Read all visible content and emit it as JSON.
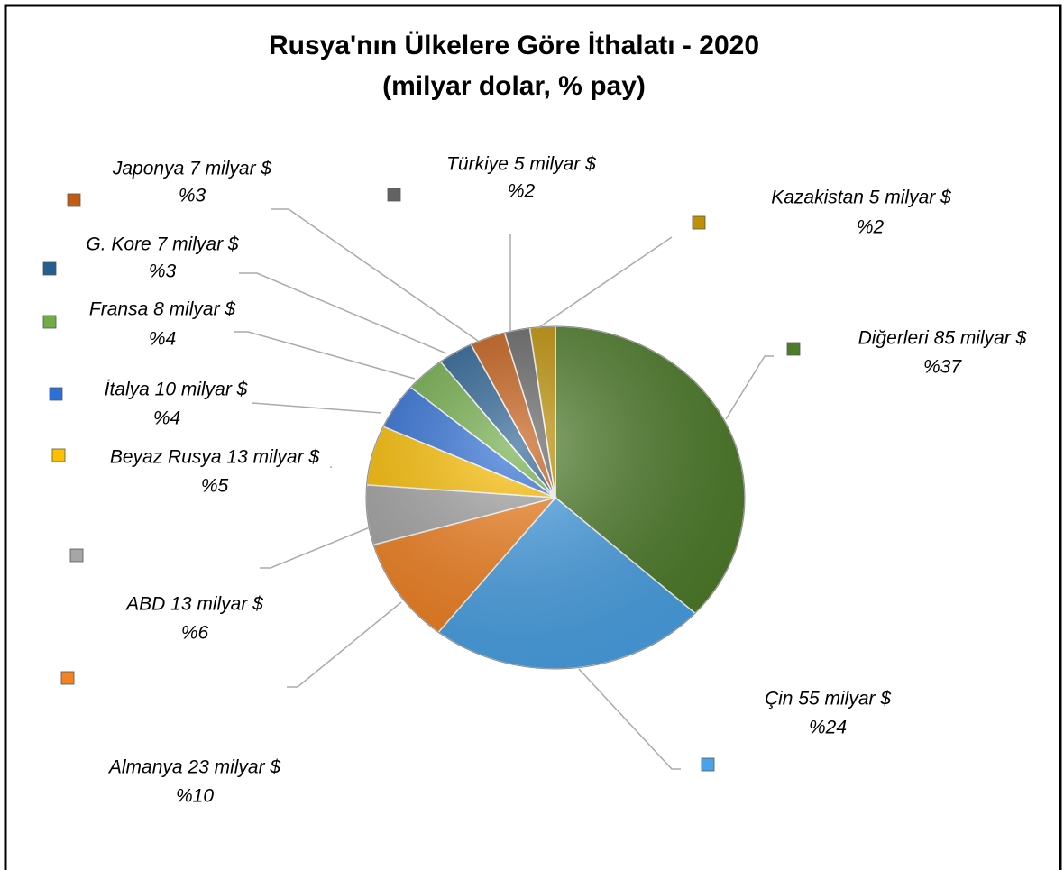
{
  "chart_data": {
    "type": "pie",
    "title": "Rusya'nın Ülkelere Göre İthalatı - 2020",
    "subtitle": "(milyar dolar, % pay)",
    "values": [
      85,
      55,
      23,
      13,
      13,
      10,
      8,
      7,
      7,
      5,
      5
    ],
    "value_labels": [
      "Diğerleri 85 milyar $",
      "Çin 55 milyar $",
      "Almanya 23 milyar $",
      "ABD 13 milyar $",
      "Beyaz Rusya 13 milyar $",
      "İtalya 10 milyar $",
      "Fransa 8 milyar $",
      "G. Kore 7 milyar $",
      "Japonya 7 milyar $",
      "Türkiye 5 milyar $",
      "Kazakistan 5 milyar $"
    ],
    "shares": [
      37,
      24,
      10,
      6,
      5,
      4,
      4,
      3,
      3,
      2,
      2
    ],
    "share_labels": [
      "%37",
      "%24",
      "%10",
      "%6",
      "%5",
      "%4",
      "%4",
      "%3",
      "%3",
      "%2",
      "%2"
    ],
    "colors": [
      "#4e7d2a",
      "#4aa3e8",
      "#f58220",
      "#a6a6a6",
      "#ffc000",
      "#2e6fd8",
      "#70ad47",
      "#255e91",
      "#c55a11",
      "#636363",
      "#bf9000"
    ]
  }
}
